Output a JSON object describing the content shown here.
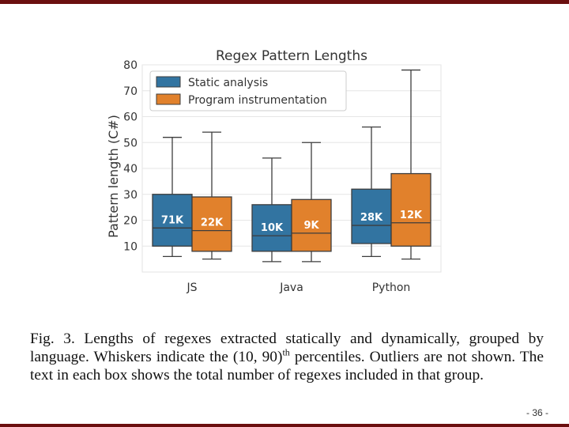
{
  "chart_data": {
    "type": "box",
    "title": "Regex Pattern Lengths",
    "xlabel": "",
    "ylabel": "Pattern length (C#)",
    "ylim": [
      0,
      80
    ],
    "yticks": [
      10,
      20,
      30,
      40,
      50,
      60,
      70,
      80
    ],
    "categories": [
      "JS",
      "Java",
      "Python"
    ],
    "legend_position": "top-left",
    "grid": true,
    "series": [
      {
        "name": "Static analysis",
        "color": "#3274a1",
        "boxes": [
          {
            "whisker_low": 6,
            "q1": 10,
            "median": 17,
            "q3": 30,
            "whisker_high": 52,
            "label": "71K"
          },
          {
            "whisker_low": 4,
            "q1": 8,
            "median": 14,
            "q3": 26,
            "whisker_high": 44,
            "label": "10K"
          },
          {
            "whisker_low": 6,
            "q1": 11,
            "median": 18,
            "q3": 32,
            "whisker_high": 56,
            "label": "28K"
          }
        ]
      },
      {
        "name": "Program instrumentation",
        "color": "#e1812c",
        "boxes": [
          {
            "whisker_low": 5,
            "q1": 8,
            "median": 16,
            "q3": 29,
            "whisker_high": 54,
            "label": "22K"
          },
          {
            "whisker_low": 4,
            "q1": 8,
            "median": 15,
            "q3": 28,
            "whisker_high": 50,
            "label": "9K"
          },
          {
            "whisker_low": 5,
            "q1": 10,
            "median": 19,
            "q3": 38,
            "whisker_high": 78,
            "label": "12K"
          }
        ]
      }
    ]
  },
  "caption": {
    "part1": "Fig. 3.   Lengths of regexes extracted statically and dynamically, grouped by language. Whiskers indicate the (10, 90)",
    "sup": "th",
    "part2": " percentiles. Outliers are not shown. The text in each box shows the total number of regexes included in that group."
  },
  "page_number": "- 36 -"
}
